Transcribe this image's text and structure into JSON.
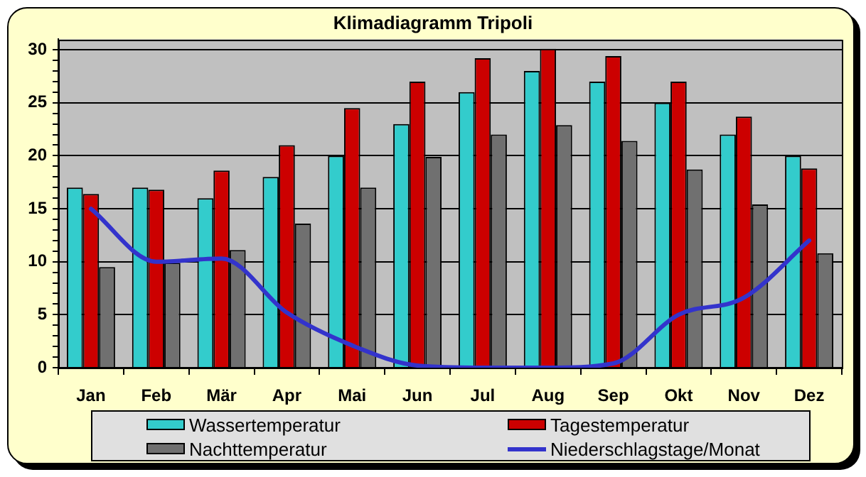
{
  "chart_data": {
    "type": "bar",
    "title": "Klimadiagramm Tripoli",
    "categories": [
      "Jan",
      "Feb",
      "Mär",
      "Apr",
      "Mai",
      "Jun",
      "Jul",
      "Aug",
      "Sep",
      "Okt",
      "Nov",
      "Dez"
    ],
    "series": [
      {
        "name": "Wassertemperatur",
        "color": "#33cccc",
        "values": [
          17,
          17,
          16,
          18,
          20,
          23,
          26,
          28,
          27,
          25,
          22,
          20
        ]
      },
      {
        "name": "Tagestemperatur",
        "color": "#cc0000",
        "values": [
          16.4,
          16.8,
          18.6,
          21,
          24.5,
          27,
          29.2,
          30.1,
          29.4,
          27,
          23.7,
          18.8
        ]
      },
      {
        "name": "Nachttemperatur",
        "color": "#707070",
        "values": [
          9.5,
          9.9,
          11.1,
          13.6,
          17,
          19.9,
          22,
          22.9,
          21.4,
          18.7,
          15.4,
          10.8
        ]
      },
      {
        "name": "Niederschlagstage/Monat",
        "type": "line",
        "color": "#3333cc",
        "values": [
          15,
          10,
          10.3,
          5.2,
          2.1,
          0.2,
          0,
          0,
          0.4,
          5,
          6.6,
          12
        ]
      }
    ],
    "ylim": [
      0,
      31
    ],
    "yticks": [
      0,
      {
        "value": 1,
        "label": null
      },
      {
        "value": 2,
        "label": null
      },
      {
        "value": 3,
        "label": null
      },
      {
        "value": 4,
        "label": null
      },
      5,
      {
        "value": 6,
        "label": null
      },
      {
        "value": 7,
        "label": null
      },
      {
        "value": 8,
        "label": null
      },
      {
        "value": 9,
        "label": null
      },
      10,
      {
        "value": 11,
        "label": null
      },
      {
        "value": 12,
        "label": null
      },
      {
        "value": 13,
        "label": null
      },
      {
        "value": 14,
        "label": null
      },
      15,
      {
        "value": 16,
        "label": null
      },
      {
        "value": 17,
        "label": null
      },
      {
        "value": 18,
        "label": null
      },
      {
        "value": 19,
        "label": null
      },
      20,
      {
        "value": 21,
        "label": null
      },
      {
        "value": 22,
        "label": null
      },
      {
        "value": 23,
        "label": null
      },
      {
        "value": 24,
        "label": null
      },
      25,
      {
        "value": 26,
        "label": null
      },
      {
        "value": 27,
        "label": null
      },
      {
        "value": 28,
        "label": null
      },
      {
        "value": 29,
        "label": null
      },
      30
    ],
    "grid": "y",
    "legend": "bottom",
    "marker": "none"
  }
}
